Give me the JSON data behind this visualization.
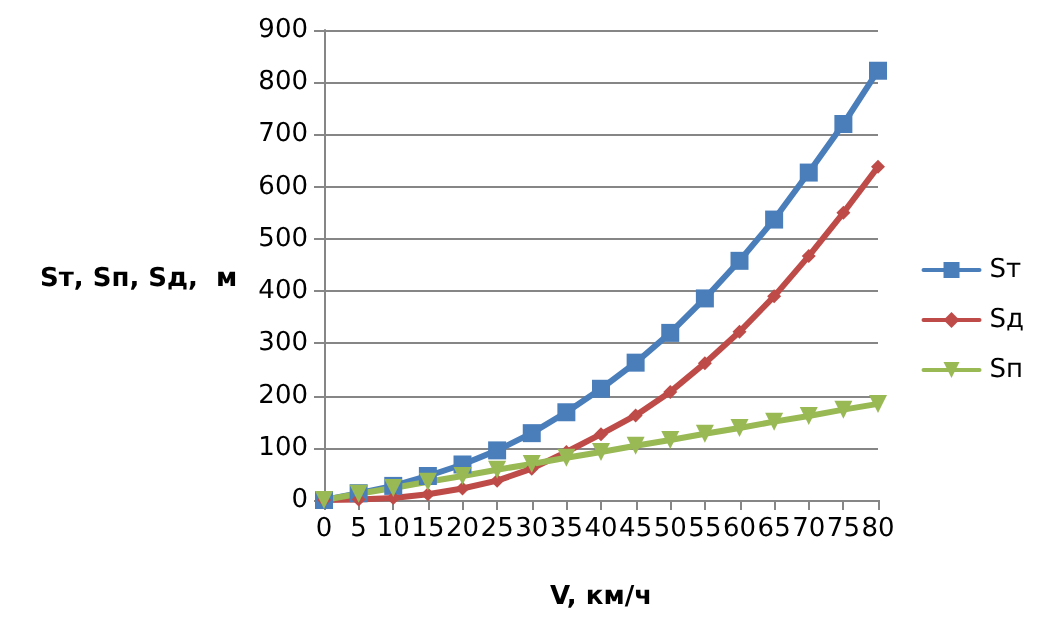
{
  "chart_data": {
    "type": "line",
    "xlabel": "V, км/ч",
    "ylabel": "Sт, Sп, Sд,  м",
    "categories": [
      "0",
      "5",
      "10",
      "15",
      "20",
      "25",
      "30",
      "35",
      "40",
      "45",
      "50",
      "55",
      "60",
      "65",
      "70",
      "75",
      "80"
    ],
    "series": [
      {
        "name": "Sт",
        "color": "#4a7ebb",
        "marker": "square",
        "values": [
          0,
          13,
          27,
          46,
          68,
          95,
          128,
          168,
          213,
          263,
          320,
          386,
          458,
          537,
          627,
          720,
          822
        ]
      },
      {
        "name": "Sд",
        "color": "#be4b48",
        "marker": "diamond",
        "values": [
          0,
          1,
          4,
          11,
          22,
          37,
          60,
          92,
          126,
          162,
          207,
          262,
          322,
          390,
          467,
          550,
          638
        ]
      },
      {
        "name": "Sп",
        "color": "#98b954",
        "marker": "triangle",
        "values": [
          0,
          12,
          23,
          35,
          46,
          58,
          69,
          81,
          92,
          104,
          115,
          127,
          138,
          150,
          161,
          173,
          184
        ]
      }
    ],
    "ylim": [
      0,
      900
    ],
    "yticks": [
      0,
      100,
      200,
      300,
      400,
      500,
      600,
      700,
      800,
      900
    ],
    "grid": "y",
    "legend": "right"
  }
}
